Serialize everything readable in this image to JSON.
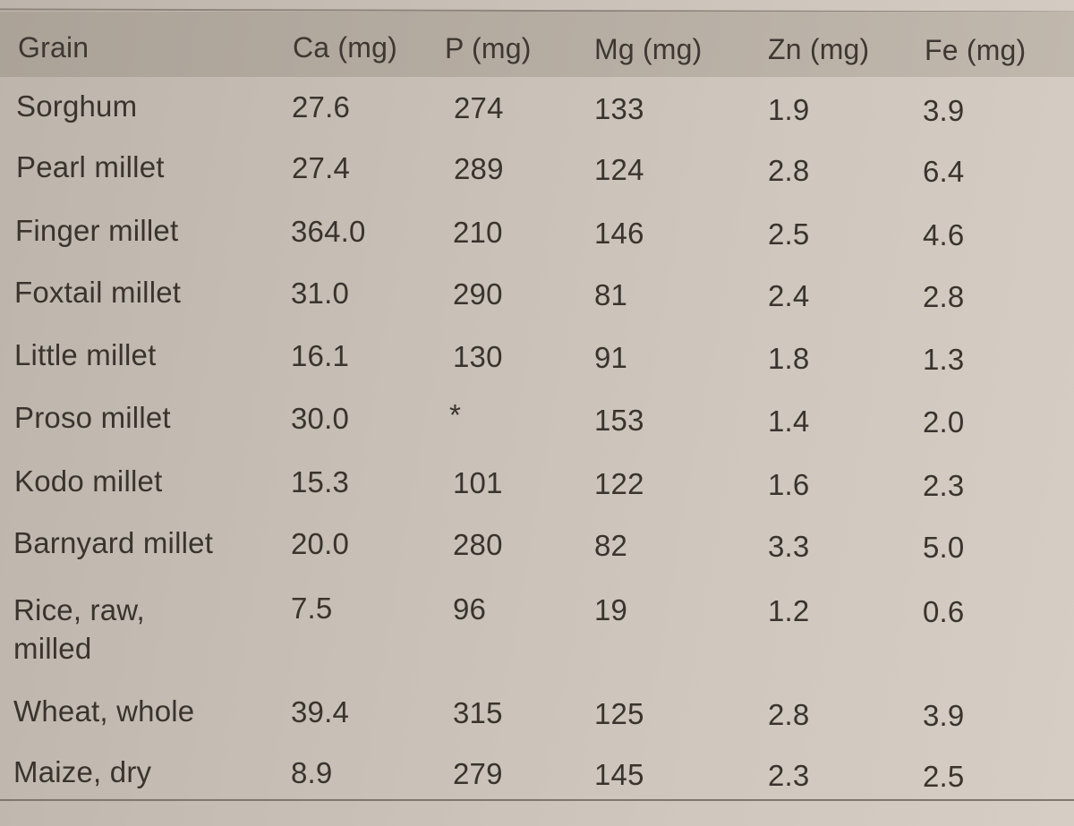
{
  "table": {
    "headers": [
      "Grain",
      "Ca (mg)",
      "P (mg)",
      "Mg (mg)",
      "Zn (mg)",
      "Fe (mg)"
    ],
    "rows": [
      {
        "grain": "Sorghum",
        "ca": "27.6",
        "p": "274",
        "mg": "133",
        "zn": "1.9",
        "fe": "3.9"
      },
      {
        "grain": "Pearl millet",
        "ca": "27.4",
        "p": "289",
        "mg": "124",
        "zn": "2.8",
        "fe": "6.4"
      },
      {
        "grain": "Finger millet",
        "ca": "364.0",
        "p": "210",
        "mg": "146",
        "zn": "2.5",
        "fe": "4.6"
      },
      {
        "grain": "Foxtail millet",
        "ca": "31.0",
        "p": "290",
        "mg": "81",
        "zn": "2.4",
        "fe": "2.8"
      },
      {
        "grain": "Little millet",
        "ca": "16.1",
        "p": "130",
        "mg": "91",
        "zn": "1.8",
        "fe": "1.3"
      },
      {
        "grain": "Proso millet",
        "ca": "30.0",
        "p": "*",
        "mg": "153",
        "zn": "1.4",
        "fe": "2.0"
      },
      {
        "grain": "Kodo millet",
        "ca": "15.3",
        "p": "101",
        "mg": "122",
        "zn": "1.6",
        "fe": "2.3"
      },
      {
        "grain": "Barnyard millet",
        "ca": "20.0",
        "p": "280",
        "mg": "82",
        "zn": "3.3",
        "fe": "5.0"
      },
      {
        "grain": "Rice, raw, milled",
        "ca": "7.5",
        "p": "96",
        "mg": "19",
        "zn": "1.2",
        "fe": "0.6"
      },
      {
        "grain": "Wheat, whole",
        "ca": "39.4",
        "p": "315",
        "mg": "125",
        "zn": "2.8",
        "fe": "3.9"
      },
      {
        "grain": "Maize, dry",
        "ca": "8.9",
        "p": "279",
        "mg": "145",
        "zn": "2.3",
        "fe": "2.5"
      }
    ]
  },
  "colors": {
    "paper": "#cfc7bd",
    "header_band": "#b5aca2",
    "text": "#3a332e",
    "rule": "#7f766e"
  }
}
